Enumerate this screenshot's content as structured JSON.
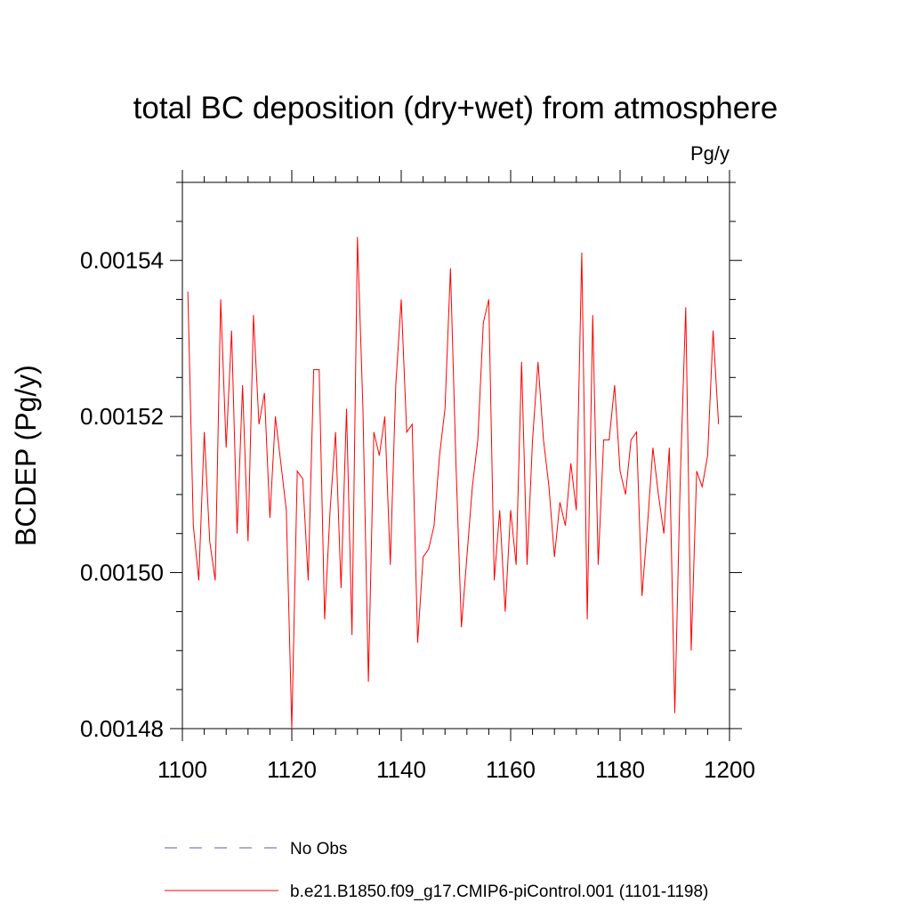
{
  "chart_data": {
    "type": "line",
    "title": "total BC deposition (dry+wet) from atmosphere",
    "units_label": "Pg/y",
    "ylabel": "BCDEP  (Pg/y)",
    "xlabel": "",
    "xlim": [
      1100,
      1200
    ],
    "ylim": [
      0.00148,
      0.00155
    ],
    "x_ticks": [
      1100,
      1120,
      1140,
      1160,
      1180,
      1200
    ],
    "x_tick_labels": [
      "1100",
      "1120",
      "1140",
      "1160",
      "1180",
      "1200"
    ],
    "y_ticks": [
      0.00148,
      0.0015,
      0.00152,
      0.00154
    ],
    "y_tick_labels": [
      "0.00148",
      "0.00150",
      "0.00152",
      "0.00154"
    ],
    "grid": false,
    "legend": [
      {
        "label": "No Obs",
        "color": "#5a5ab4",
        "style": "dashed"
      },
      {
        "label": "b.e21.B1850.f09_g17.CMIP6-piControl.001 (1101-1198)",
        "color": "#ff0000",
        "style": "solid"
      }
    ],
    "series": [
      {
        "name": "b.e21.B1850.f09_g17.CMIP6-piControl.001 (1101-1198)",
        "color": "#ff0000",
        "x_start": 1101,
        "values": [
          0.001536,
          0.001506,
          0.001499,
          0.001518,
          0.001504,
          0.001499,
          0.001535,
          0.001516,
          0.001531,
          0.001505,
          0.001524,
          0.001504,
          0.001533,
          0.001519,
          0.001523,
          0.001507,
          0.00152,
          0.001514,
          0.001508,
          0.00148,
          0.001513,
          0.001512,
          0.001499,
          0.001526,
          0.001526,
          0.001494,
          0.001508,
          0.001518,
          0.001498,
          0.001521,
          0.001492,
          0.001543,
          0.001521,
          0.001486,
          0.001518,
          0.001515,
          0.00152,
          0.001501,
          0.001524,
          0.001535,
          0.001518,
          0.001519,
          0.001491,
          0.001502,
          0.001503,
          0.001506,
          0.001515,
          0.001521,
          0.001539,
          0.001514,
          0.001493,
          0.001502,
          0.001511,
          0.001517,
          0.001532,
          0.001535,
          0.001499,
          0.001508,
          0.001495,
          0.001508,
          0.001501,
          0.001527,
          0.001501,
          0.001517,
          0.001527,
          0.001517,
          0.001511,
          0.001502,
          0.001509,
          0.001506,
          0.001514,
          0.001508,
          0.001541,
          0.001494,
          0.001533,
          0.001501,
          0.001517,
          0.001517,
          0.001524,
          0.001513,
          0.00151,
          0.001517,
          0.001518,
          0.001497,
          0.001506,
          0.001516,
          0.00151,
          0.001505,
          0.001516,
          0.001482,
          0.001512,
          0.001534,
          0.00149,
          0.001513,
          0.001511,
          0.001515,
          0.001531,
          0.001519
        ]
      }
    ]
  }
}
